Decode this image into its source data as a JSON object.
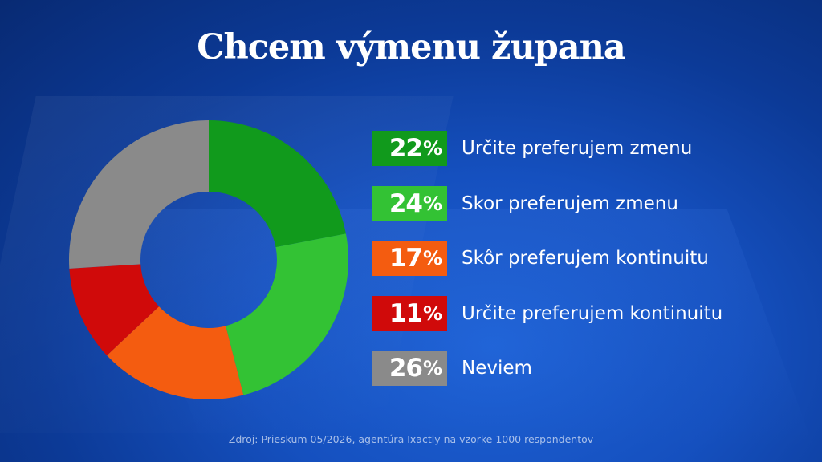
{
  "title": "Chcem výmenu župana",
  "source": "Zdroj: Prieskum 05/2026, agentúra Ixactly na vzorke 1000 respondentov",
  "chart_data": {
    "type": "pie",
    "donut": true,
    "title": "Chcem výmenu župana",
    "unit": "%",
    "slices": [
      {
        "label": "Určite preferujem zmenu",
        "value": 22,
        "display": "22",
        "color": "#119a1c"
      },
      {
        "label": "Skor preferujem zmenu",
        "value": 24,
        "display": "24",
        "color": "#33c234"
      },
      {
        "label": "Skôr preferujem kontinuitu",
        "value": 17,
        "display": "17",
        "color": "#f45c10"
      },
      {
        "label": "Určite preferujem kontinuitu",
        "value": 11,
        "display": "11",
        "color": "#d00a0a"
      },
      {
        "label": "Neviem",
        "value": 26,
        "display": "26",
        "color": "#8a8a8a"
      }
    ],
    "legend_position": "right"
  }
}
